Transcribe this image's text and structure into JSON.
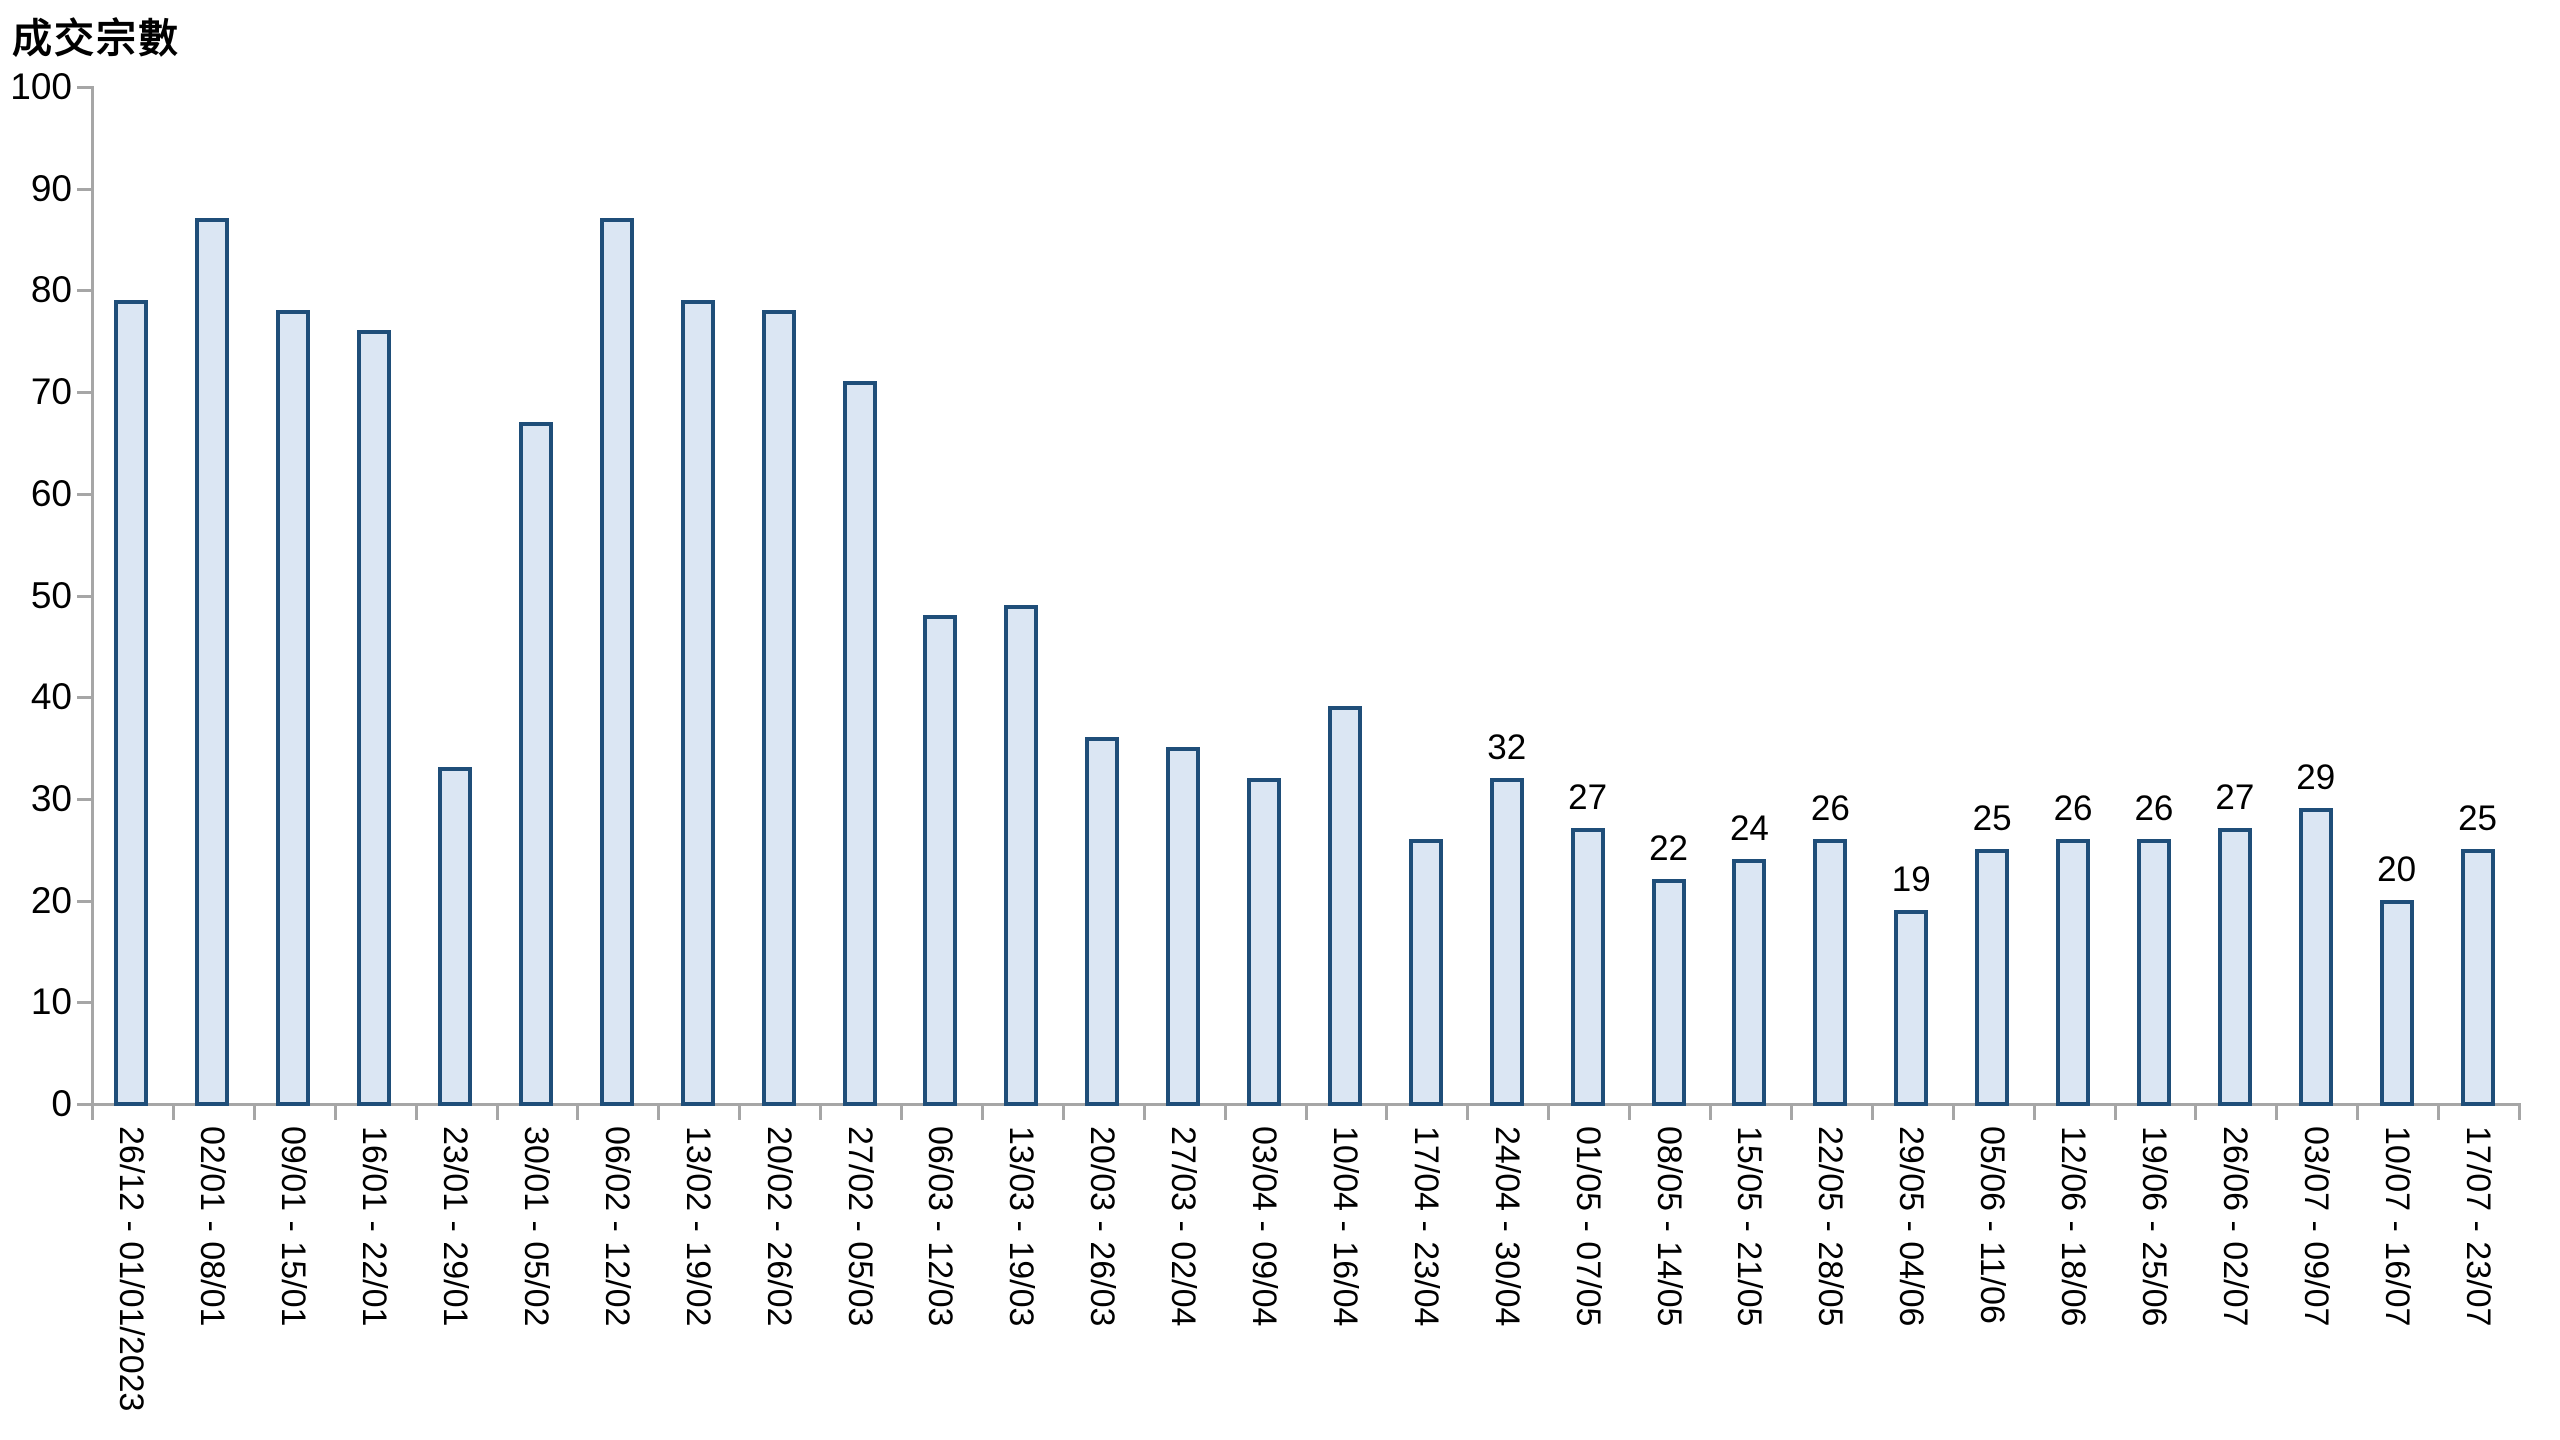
{
  "page": {
    "background": "#ffffff"
  },
  "chart_data": {
    "type": "bar",
    "title": "成交宗數",
    "categories": [
      "26/12 - 01/01/2023",
      "02/01 - 08/01",
      "09/01 - 15/01",
      "16/01 - 22/01",
      "23/01 - 29/01",
      "30/01 - 05/02",
      "06/02 - 12/02",
      "13/02 - 19/02",
      "20/02 - 26/02",
      "27/02 - 05/03",
      "06/03 - 12/03",
      "13/03 - 19/03",
      "20/03 - 26/03",
      "27/03 - 02/04",
      "03/04 - 09/04",
      "10/04 - 16/04",
      "17/04 - 23/04",
      "24/04 - 30/04",
      "01/05 - 07/05",
      "08/05 - 14/05",
      "15/05 - 21/05",
      "22/05 - 28/05",
      "29/05 - 04/06",
      "05/06 - 11/06",
      "12/06 - 18/06",
      "19/06 - 25/06",
      "26/06 - 02/07",
      "03/07 - 09/07",
      "10/07 - 16/07",
      "17/07 - 23/07"
    ],
    "values": [
      79,
      87,
      78,
      76,
      33,
      67,
      87,
      79,
      78,
      71,
      48,
      49,
      36,
      35,
      32,
      39,
      26,
      32,
      27,
      22,
      24,
      26,
      19,
      25,
      26,
      26,
      27,
      29,
      20,
      25
    ],
    "data_labels": [
      null,
      null,
      null,
      null,
      null,
      null,
      null,
      null,
      null,
      null,
      null,
      null,
      null,
      null,
      null,
      null,
      null,
      "32",
      "27",
      "22",
      "24",
      "26",
      "19",
      "25",
      "26",
      "26",
      "27",
      "29",
      "20",
      "25"
    ],
    "ylabel": "成交宗數",
    "xlabel": "",
    "ylim": [
      0,
      100
    ],
    "ytick_step": 10,
    "grid": "off",
    "legend": "none",
    "colors": {
      "bar_fill": "#dbe6f3",
      "bar_border": "#1f4e79",
      "axis": "#a6a6a6",
      "text": "#000000"
    }
  }
}
